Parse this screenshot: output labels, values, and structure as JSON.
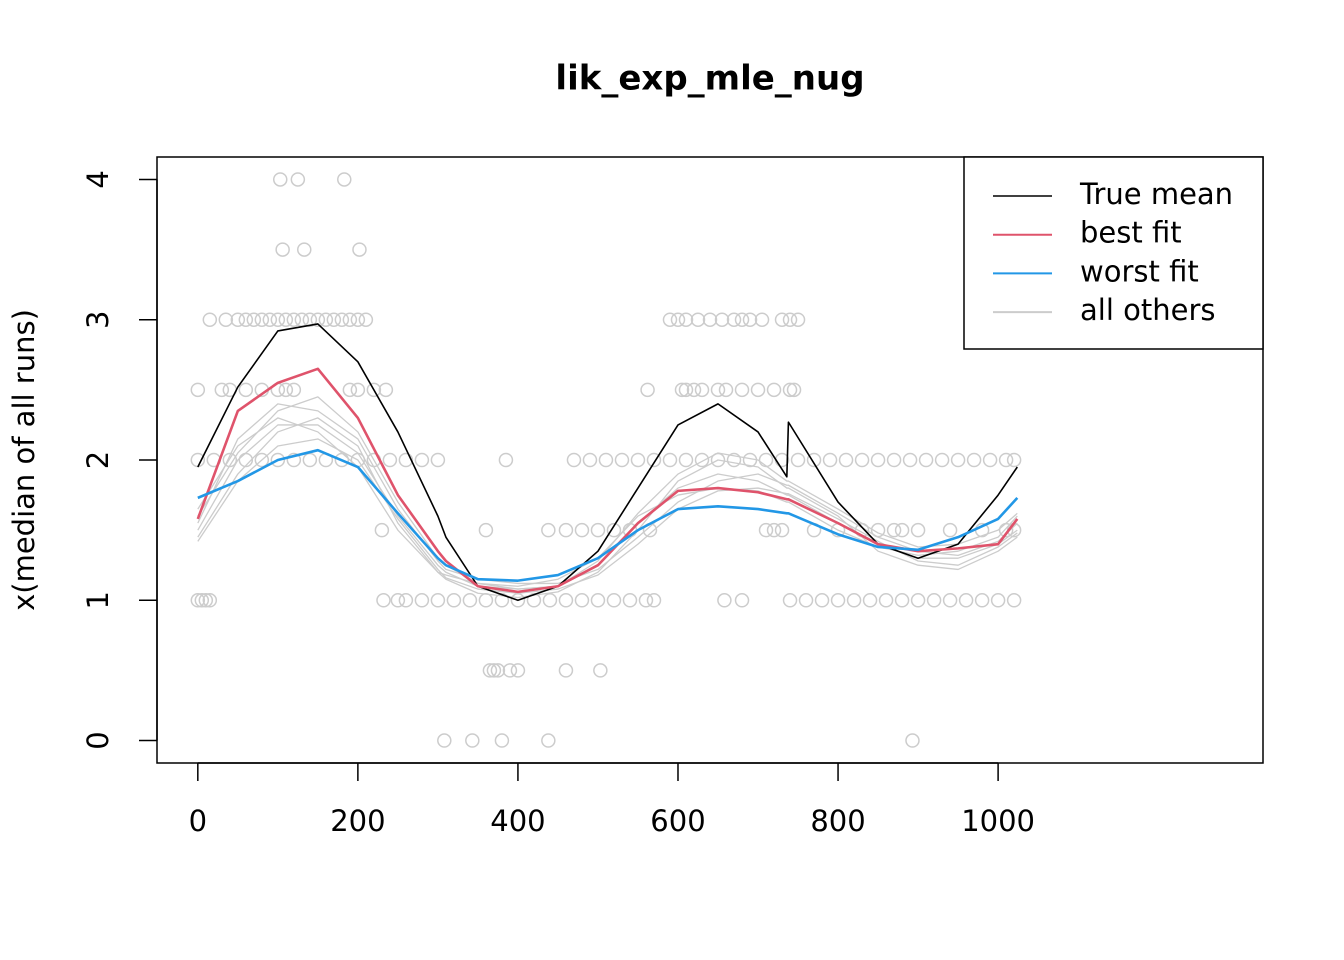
{
  "chart_data": {
    "type": "line",
    "title": "lik_exp_mle_nug",
    "y_label": "x(median of all runs)",
    "xlim": [
      -51,
      1331
    ],
    "ylim": [
      -0.16,
      4.16
    ],
    "xticks": [
      0,
      200,
      400,
      600,
      800,
      1000
    ],
    "yticks": [
      0,
      1,
      2,
      3,
      4
    ],
    "legend": "top-right",
    "x": [
      0,
      50,
      100,
      150,
      200,
      250,
      300,
      310,
      350,
      400,
      450,
      500,
      550,
      600,
      650,
      700,
      736,
      738,
      800,
      850,
      900,
      950,
      1000,
      1024
    ],
    "series": [
      {
        "name": "True mean",
        "color": "#000000",
        "values": [
          1.95,
          2.52,
          2.92,
          2.97,
          2.7,
          2.2,
          1.6,
          1.45,
          1.1,
          1.0,
          1.1,
          1.35,
          1.8,
          2.25,
          2.4,
          2.2,
          1.88,
          2.27,
          1.7,
          1.4,
          1.3,
          1.4,
          1.75,
          1.95
        ]
      },
      {
        "name": "best fit",
        "color": "#df536b",
        "values": [
          1.58,
          2.35,
          2.55,
          2.65,
          2.3,
          1.75,
          1.35,
          1.28,
          1.1,
          1.06,
          1.1,
          1.25,
          1.55,
          1.78,
          1.8,
          1.77,
          1.72,
          1.72,
          1.55,
          1.4,
          1.35,
          1.37,
          1.4,
          1.58
        ]
      },
      {
        "name": "worst fit",
        "color": "#2297e6",
        "values": [
          1.73,
          1.85,
          2.0,
          2.07,
          1.95,
          1.62,
          1.3,
          1.25,
          1.15,
          1.14,
          1.18,
          1.3,
          1.5,
          1.65,
          1.67,
          1.65,
          1.62,
          1.62,
          1.47,
          1.38,
          1.36,
          1.45,
          1.58,
          1.73
        ]
      },
      {
        "name": "all others",
        "color": "#cccccc",
        "lines": [
          [
            1.5,
            2.0,
            2.25,
            2.25,
            2.05,
            1.6,
            1.25,
            1.2,
            1.1,
            1.08,
            1.1,
            1.25,
            1.55,
            1.8,
            1.9,
            1.85,
            1.75,
            1.75,
            1.55,
            1.4,
            1.3,
            1.3,
            1.4,
            1.5
          ],
          [
            1.45,
            1.9,
            2.2,
            2.3,
            2.1,
            1.55,
            1.2,
            1.15,
            1.05,
            1.02,
            1.06,
            1.2,
            1.5,
            1.85,
            2.0,
            1.95,
            1.8,
            1.8,
            1.6,
            1.35,
            1.25,
            1.22,
            1.35,
            1.45
          ],
          [
            1.65,
            2.1,
            2.3,
            2.2,
            1.95,
            1.5,
            1.2,
            1.18,
            1.12,
            1.1,
            1.15,
            1.3,
            1.6,
            1.75,
            1.8,
            1.78,
            1.7,
            1.7,
            1.5,
            1.38,
            1.32,
            1.35,
            1.45,
            1.6
          ],
          [
            1.55,
            2.15,
            2.4,
            2.35,
            2.15,
            1.65,
            1.28,
            1.22,
            1.15,
            1.12,
            1.12,
            1.22,
            1.45,
            1.7,
            1.85,
            1.9,
            1.82,
            1.82,
            1.62,
            1.45,
            1.35,
            1.32,
            1.42,
            1.55
          ],
          [
            1.42,
            1.85,
            2.1,
            2.15,
            2.0,
            1.58,
            1.22,
            1.16,
            1.08,
            1.05,
            1.08,
            1.18,
            1.4,
            1.65,
            1.78,
            1.8,
            1.76,
            1.76,
            1.58,
            1.42,
            1.28,
            1.25,
            1.38,
            1.48
          ],
          [
            1.6,
            2.05,
            2.35,
            2.45,
            2.2,
            1.7,
            1.3,
            1.25,
            1.12,
            1.08,
            1.1,
            1.28,
            1.62,
            1.9,
            2.05,
            2.0,
            1.85,
            1.85,
            1.65,
            1.48,
            1.38,
            1.4,
            1.5,
            1.62
          ]
        ]
      }
    ],
    "scatter": {
      "color": "#cccccc",
      "x": [
        103,
        125,
        183,
        106,
        133,
        202,
        15,
        35,
        50,
        60,
        70,
        80,
        90,
        100,
        110,
        120,
        130,
        140,
        150,
        160,
        170,
        180,
        190,
        200,
        210,
        590,
        600,
        610,
        625,
        640,
        655,
        670,
        680,
        690,
        705,
        730,
        740,
        750,
        0,
        30,
        40,
        60,
        80,
        100,
        110,
        120,
        190,
        200,
        220,
        235,
        562,
        605,
        610,
        620,
        630,
        650,
        660,
        680,
        700,
        720,
        740,
        745,
        0,
        20,
        40,
        60,
        80,
        100,
        120,
        140,
        160,
        180,
        200,
        220,
        240,
        260,
        280,
        300,
        385,
        470,
        490,
        510,
        530,
        550,
        570,
        590,
        610,
        630,
        650,
        670,
        690,
        710,
        730,
        750,
        770,
        790,
        810,
        830,
        850,
        870,
        890,
        910,
        930,
        950,
        970,
        990,
        1010,
        1020,
        230,
        360,
        438,
        460,
        480,
        500,
        520,
        540,
        565,
        710,
        720,
        730,
        770,
        800,
        830,
        850,
        870,
        880,
        900,
        940,
        980,
        1010,
        1020,
        0,
        5,
        10,
        15,
        232,
        250,
        260,
        280,
        300,
        320,
        340,
        360,
        380,
        400,
        420,
        440,
        460,
        480,
        500,
        520,
        540,
        560,
        570,
        658,
        680,
        740,
        760,
        780,
        800,
        820,
        840,
        860,
        880,
        900,
        920,
        940,
        960,
        980,
        1000,
        1020,
        365,
        370,
        375,
        390,
        400,
        460,
        503,
        308,
        343,
        380,
        438,
        893
      ],
      "y": [
        4,
        4,
        4,
        3.5,
        3.5,
        3.5,
        3,
        3,
        3,
        3,
        3,
        3,
        3,
        3,
        3,
        3,
        3,
        3,
        3,
        3,
        3,
        3,
        3,
        3,
        3,
        3,
        3,
        3,
        3,
        3,
        3,
        3,
        3,
        3,
        3,
        3,
        3,
        3,
        2.5,
        2.5,
        2.5,
        2.5,
        2.5,
        2.5,
        2.5,
        2.5,
        2.5,
        2.5,
        2.5,
        2.5,
        2.5,
        2.5,
        2.5,
        2.5,
        2.5,
        2.5,
        2.5,
        2.5,
        2.5,
        2.5,
        2.5,
        2.5,
        2,
        2,
        2,
        2,
        2,
        2,
        2,
        2,
        2,
        2,
        2,
        2,
        2,
        2,
        2,
        2,
        2,
        2,
        2,
        2,
        2,
        2,
        2,
        2,
        2,
        2,
        2,
        2,
        2,
        2,
        2,
        2,
        2,
        2,
        2,
        2,
        2,
        2,
        2,
        2,
        2,
        2,
        2,
        2,
        2,
        2,
        1.5,
        1.5,
        1.5,
        1.5,
        1.5,
        1.5,
        1.5,
        1.5,
        1.5,
        1.5,
        1.5,
        1.5,
        1.5,
        1.5,
        1.5,
        1.5,
        1.5,
        1.5,
        1.5,
        1.5,
        1.5,
        1.5,
        1.5,
        1,
        1,
        1,
        1,
        1,
        1,
        1,
        1,
        1,
        1,
        1,
        1,
        1,
        1,
        1,
        1,
        1,
        1,
        1,
        1,
        1,
        1,
        1,
        1,
        1,
        1,
        1,
        1,
        1,
        1,
        1,
        1,
        1,
        1,
        1,
        1,
        1,
        1,
        1,
        1,
        0.5,
        0.5,
        0.5,
        0.5,
        0.5,
        0.5,
        0.5,
        0,
        0,
        0,
        0,
        0
      ]
    }
  }
}
